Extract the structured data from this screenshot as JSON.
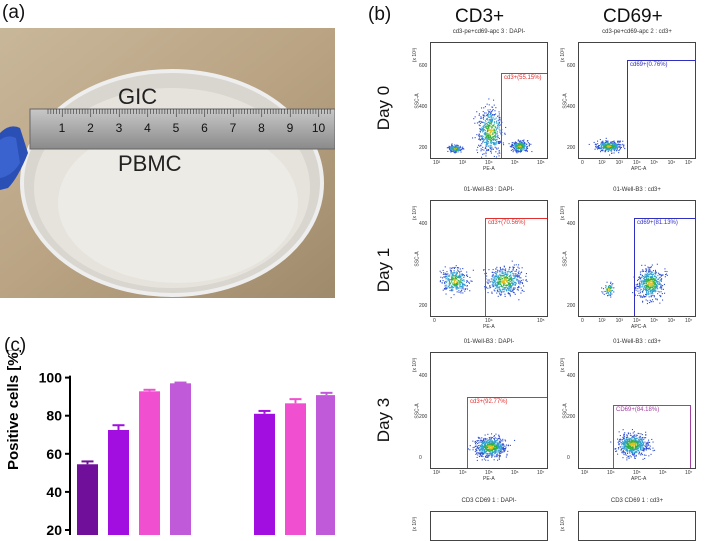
{
  "panel_labels": {
    "a": "(a)",
    "b": "(b)",
    "c": "(c)"
  },
  "photo": {
    "lid_text": "GIC",
    "dish_text": "PBMC",
    "ruler_numbers": [
      "1",
      "2",
      "3",
      "4",
      "5",
      "6",
      "7",
      "8",
      "9",
      "10"
    ]
  },
  "flow": {
    "columns": [
      "CD3+",
      "CD69+"
    ],
    "rows": [
      "Day 0",
      "Day 1",
      "Day 3"
    ],
    "plots": [
      {
        "title": "cd3-pe+cd69-apc 3 : DAPI-",
        "gate": "cd3+(55.15%)",
        "xlabel": "PE-A",
        "ylabel": "SSC-A",
        "yexp": "(x 10³)",
        "yticks": [
          "600",
          "400",
          "200"
        ],
        "xticks": [
          "10²",
          "10³",
          "10⁴",
          "10⁵",
          "10⁶"
        ]
      },
      {
        "title": "cd3-pe+cd69-apc 2 : cd3+",
        "gate": "cd69+(0.76%)",
        "xlabel": "APC-A",
        "ylabel": "SSC-A",
        "yexp": "(x 10³)",
        "yticks": [
          "600",
          "400",
          "200"
        ],
        "xticks": [
          "0",
          "10²",
          "10³",
          "10⁴",
          "10⁵",
          "10⁶",
          "10⁷"
        ]
      },
      {
        "title": "01-Well-B3 : DAPI-",
        "gate": "cd3+(70.56%)",
        "xlabel": "PE-A",
        "ylabel": "SSC-A",
        "yexp": "(x 10³)",
        "yticks": [
          "400",
          "200"
        ],
        "xticks": [
          "0",
          "10⁴",
          "10⁵"
        ]
      },
      {
        "title": "01-Well-B3 : cd3+",
        "gate": "cd69+(81.13%)",
        "xlabel": "APC-A",
        "ylabel": "SSC-A",
        "yexp": "(x 10³)",
        "yticks": [
          "400",
          "200"
        ],
        "xticks": [
          "0",
          "10²",
          "10³",
          "10⁴",
          "10⁵",
          "10⁶",
          "10⁷"
        ]
      },
      {
        "title": "01-Well-B3 : DAPI-",
        "gate": "cd3+(92.77%)",
        "xlabel": "PE-A",
        "ylabel": "SSC-A",
        "yexp": "(x 10³)",
        "yticks": [
          "400",
          "200",
          "0"
        ],
        "xticks": [
          "10³",
          "10⁴",
          "10⁵",
          "10⁶",
          "10⁷"
        ]
      },
      {
        "title": "01-Well-B3 : cd3+",
        "gate": "CD69+(84.18%)",
        "xlabel": "APC-A",
        "ylabel": "SSC-A",
        "yexp": "(x 10³)",
        "yticks": [
          "400",
          "200",
          "0"
        ],
        "xticks": [
          "10³",
          "10⁴",
          "10⁵",
          "10⁶",
          "10⁷"
        ]
      },
      {
        "title": "CD3 CD69 1 : DAPI-",
        "gate": "",
        "xlabel": "",
        "ylabel": "",
        "yexp": "(x 10³)",
        "yticks": [],
        "xticks": []
      },
      {
        "title": "CD3 CD69 1 : cd3+",
        "gate": "",
        "xlabel": "",
        "ylabel": "",
        "yexp": "(x 10³)",
        "yticks": [],
        "xticks": []
      }
    ]
  },
  "chart_data": {
    "type": "bar",
    "ylabel": "Positive cells [%]",
    "yticks": [
      20,
      40,
      60,
      80,
      100
    ],
    "ylim": [
      20,
      100
    ],
    "bars": [
      {
        "value": 54.5,
        "error": 1.5,
        "color": "#6f0f9a"
      },
      {
        "value": 72.5,
        "error": 2.5,
        "color": "#a20ee0"
      },
      {
        "value": 92.8,
        "error": 0.8,
        "color": "#f050d0"
      },
      {
        "value": 97.0,
        "error": 0.4,
        "color": "#c05ad8"
      },
      {
        "value": 81.0,
        "error": 1.5,
        "color": "#a20ee0"
      },
      {
        "value": 86.5,
        "error": 2.2,
        "color": "#f050d0"
      },
      {
        "value": 90.8,
        "error": 1.2,
        "color": "#c05ad8"
      }
    ]
  }
}
